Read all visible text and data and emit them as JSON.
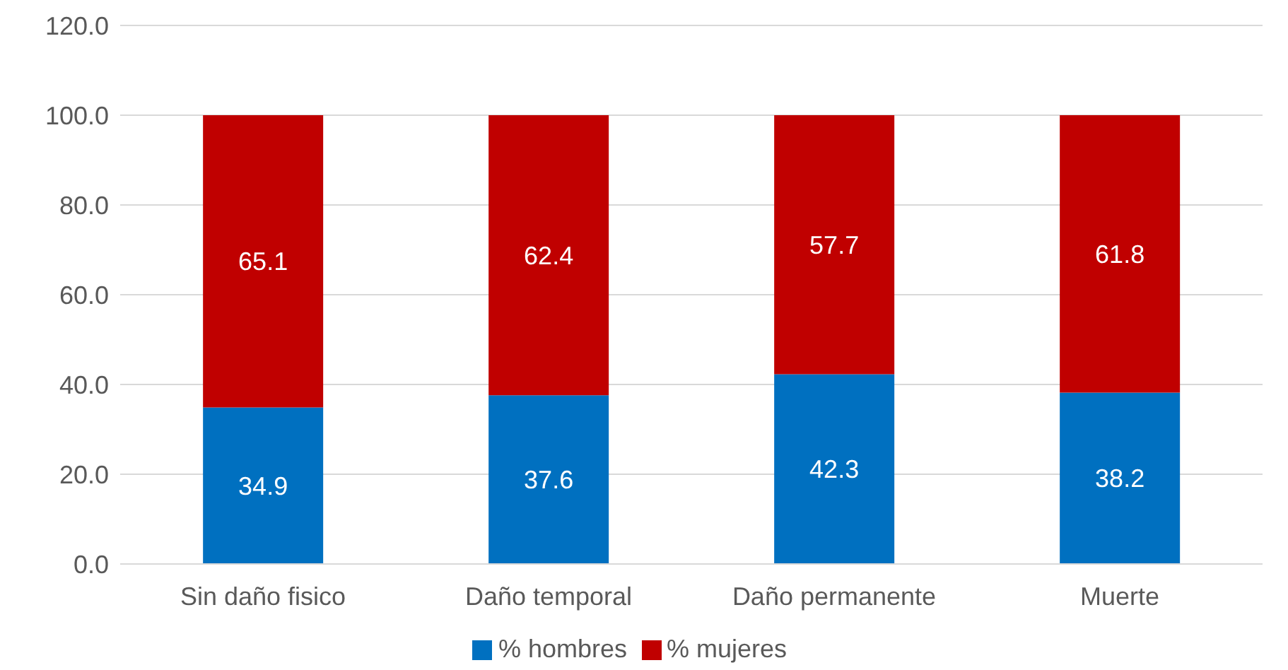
{
  "chart_data": {
    "type": "bar",
    "stacked": true,
    "categories": [
      "Sin daño fisico",
      "Daño temporal",
      "Daño permanente",
      "Muerte"
    ],
    "series": [
      {
        "name": "% hombres",
        "color": "#0070c0",
        "values": [
          34.9,
          37.6,
          42.3,
          38.2
        ]
      },
      {
        "name": "% mujeres",
        "color": "#c00000",
        "values": [
          65.1,
          62.4,
          57.7,
          61.8
        ]
      }
    ],
    "ylim": [
      0,
      120
    ],
    "yticks": [
      {
        "value": 0,
        "label": "0.0"
      },
      {
        "value": 20,
        "label": "20.0"
      },
      {
        "value": 40,
        "label": "40.0"
      },
      {
        "value": 60,
        "label": "60.0"
      },
      {
        "value": 80,
        "label": "80.0"
      },
      {
        "value": 100,
        "label": "100.0"
      },
      {
        "value": 120,
        "label": "120.0"
      }
    ],
    "grid": "y",
    "legend": "bottom",
    "data_labels": true
  }
}
